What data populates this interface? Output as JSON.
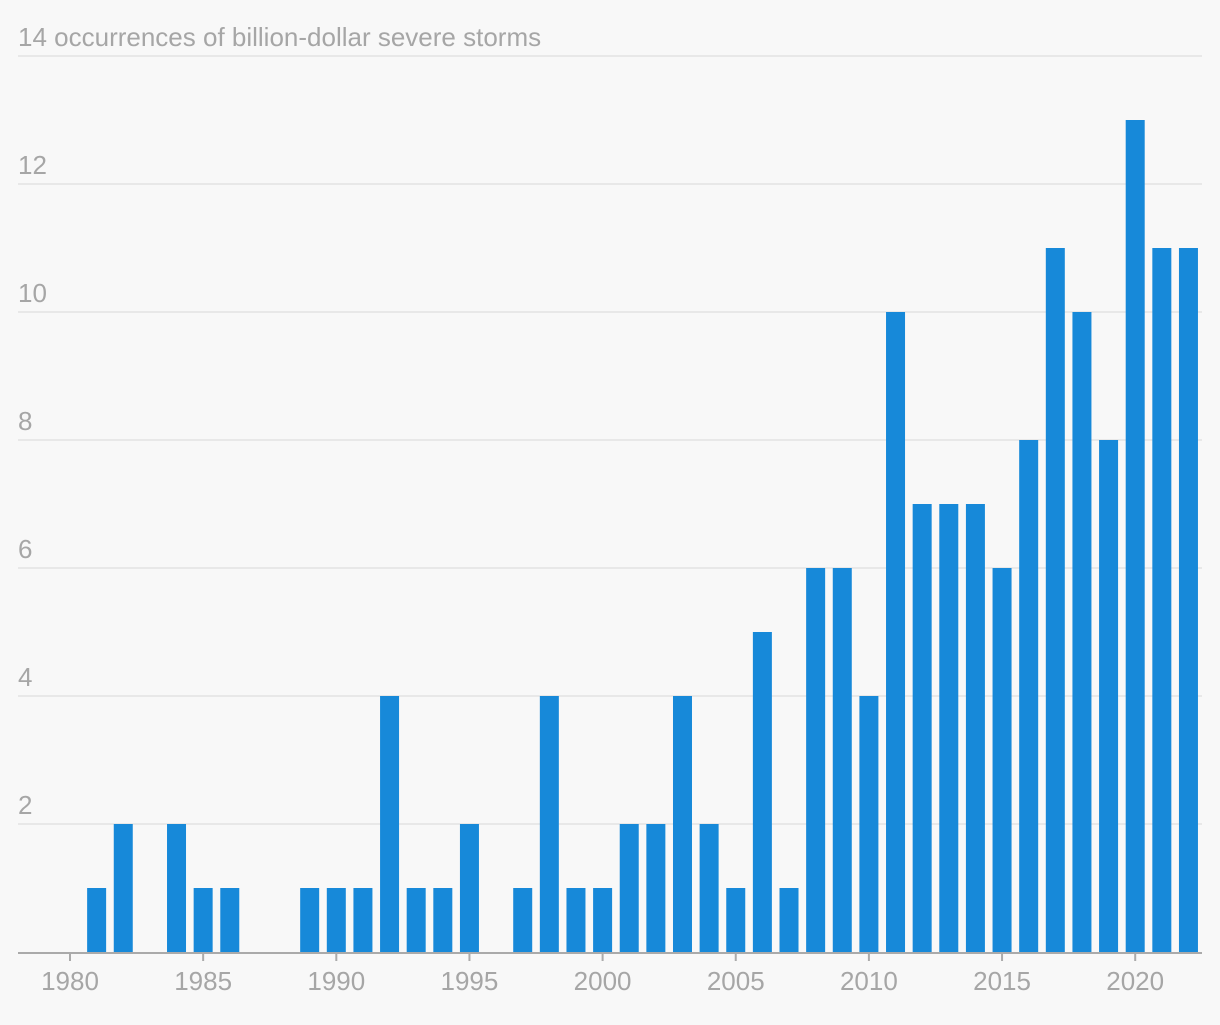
{
  "chart_data": {
    "type": "bar",
    "title": "",
    "xlabel": "",
    "ylabel": "",
    "y_unit_label": "occurrences of billion-dollar severe storms",
    "ylim": [
      0,
      14
    ],
    "y_ticks": [
      2,
      4,
      6,
      8,
      10,
      12,
      14
    ],
    "x_ticks": [
      1980,
      1985,
      1990,
      1995,
      2000,
      2005,
      2010,
      2015,
      2020
    ],
    "grid": true,
    "legend": "none",
    "bar_color": "#1789d9",
    "grid_color": "#e3e3e3",
    "axis_color": "#aaaaaa",
    "label_color": "#a6a6a6",
    "years": [
      1980,
      1981,
      1982,
      1983,
      1984,
      1985,
      1986,
      1987,
      1988,
      1989,
      1990,
      1991,
      1992,
      1993,
      1994,
      1995,
      1996,
      1997,
      1998,
      1999,
      2000,
      2001,
      2002,
      2003,
      2004,
      2005,
      2006,
      2007,
      2008,
      2009,
      2010,
      2011,
      2012,
      2013,
      2014,
      2015,
      2016,
      2017,
      2018,
      2019,
      2020,
      2021,
      2022
    ],
    "values": [
      0,
      1,
      2,
      0,
      2,
      1,
      1,
      0,
      0,
      1,
      1,
      1,
      4,
      1,
      1,
      2,
      0,
      1,
      4,
      1,
      1,
      2,
      2,
      4,
      2,
      1,
      5,
      1,
      6,
      6,
      4,
      10,
      7,
      7,
      7,
      6,
      8,
      11,
      10,
      8,
      13,
      11,
      11
    ]
  }
}
